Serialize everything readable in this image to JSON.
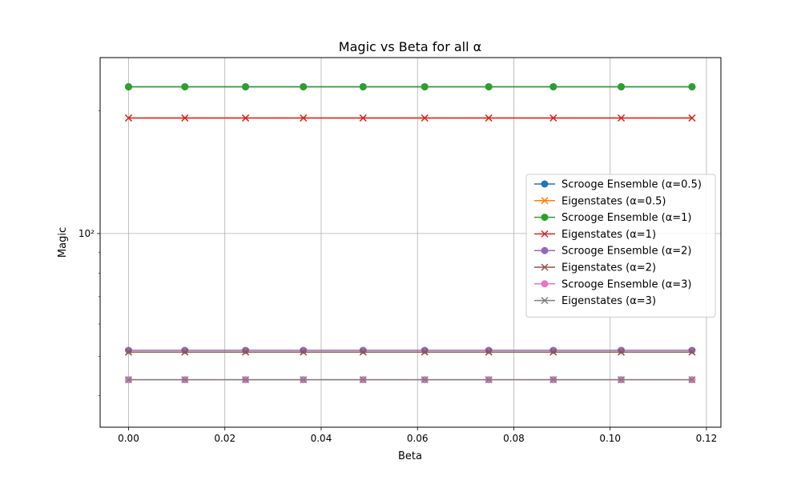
{
  "chart_data": {
    "type": "line",
    "title": "Magic vs Beta for all α",
    "xlabel": "Beta",
    "ylabel": "Magic",
    "x_scale": "linear",
    "y_scale": "log",
    "xlim": [
      -0.0059,
      0.123
    ],
    "ylim": [
      33.5,
      270
    ],
    "x_ticks": [
      0.0,
      0.02,
      0.04,
      0.06,
      0.08,
      0.1,
      0.12
    ],
    "x_tick_labels": [
      "0.00",
      "0.02",
      "0.04",
      "0.06",
      "0.08",
      "0.10",
      "0.12"
    ],
    "y_major_ticks": [
      100
    ],
    "y_major_tick_labels": [
      "10²"
    ],
    "y_minor_ticks": [
      40,
      50,
      60,
      70,
      80,
      90,
      200
    ],
    "grid": true,
    "legend_position": "center-right",
    "x": [
      0.0,
      0.0117,
      0.0243,
      0.0363,
      0.0487,
      0.0615,
      0.0748,
      0.0882,
      0.1023,
      0.117
    ],
    "series": [
      {
        "name": "Scrooge Ensemble (α=0.5)",
        "marker": "circle",
        "color": "#1f77b4",
        "values": [
          229,
          229,
          229,
          229,
          229,
          229,
          229,
          229,
          229,
          229
        ]
      },
      {
        "name": "Eigenstates (α=0.5)",
        "marker": "x",
        "color": "#ff7f0e",
        "values": [
          192,
          192,
          192,
          192,
          192,
          192,
          192,
          192,
          192,
          192
        ]
      },
      {
        "name": "Scrooge Ensemble (α=1)",
        "marker": "circle",
        "color": "#2ca02c",
        "values": [
          229,
          229,
          229,
          229,
          229,
          229,
          229,
          229,
          229,
          229
        ]
      },
      {
        "name": "Eigenstates (α=1)",
        "marker": "x",
        "color": "#d62728",
        "values": [
          192,
          192,
          192,
          192,
          192,
          192,
          192,
          192,
          192,
          192
        ]
      },
      {
        "name": "Scrooge Ensemble (α=2)",
        "marker": "circle",
        "color": "#9467bd",
        "values": [
          51.7,
          51.7,
          51.7,
          51.7,
          51.7,
          51.7,
          51.7,
          51.7,
          51.7,
          51.7
        ]
      },
      {
        "name": "Eigenstates (α=2)",
        "marker": "x",
        "color": "#8c564b",
        "values": [
          51.2,
          51.2,
          51.2,
          51.2,
          51.2,
          51.2,
          51.2,
          51.2,
          51.2,
          51.2
        ]
      },
      {
        "name": "Scrooge Ensemble (α=3)",
        "marker": "circle",
        "color": "#e377c2",
        "values": [
          43.8,
          43.8,
          43.8,
          43.8,
          43.8,
          43.8,
          43.8,
          43.8,
          43.8,
          43.8
        ]
      },
      {
        "name": "Eigenstates (α=3)",
        "marker": "x",
        "color": "#7f7f7f",
        "values": [
          43.8,
          43.8,
          43.8,
          43.8,
          43.8,
          43.8,
          43.8,
          43.8,
          43.8,
          43.8
        ]
      }
    ]
  }
}
